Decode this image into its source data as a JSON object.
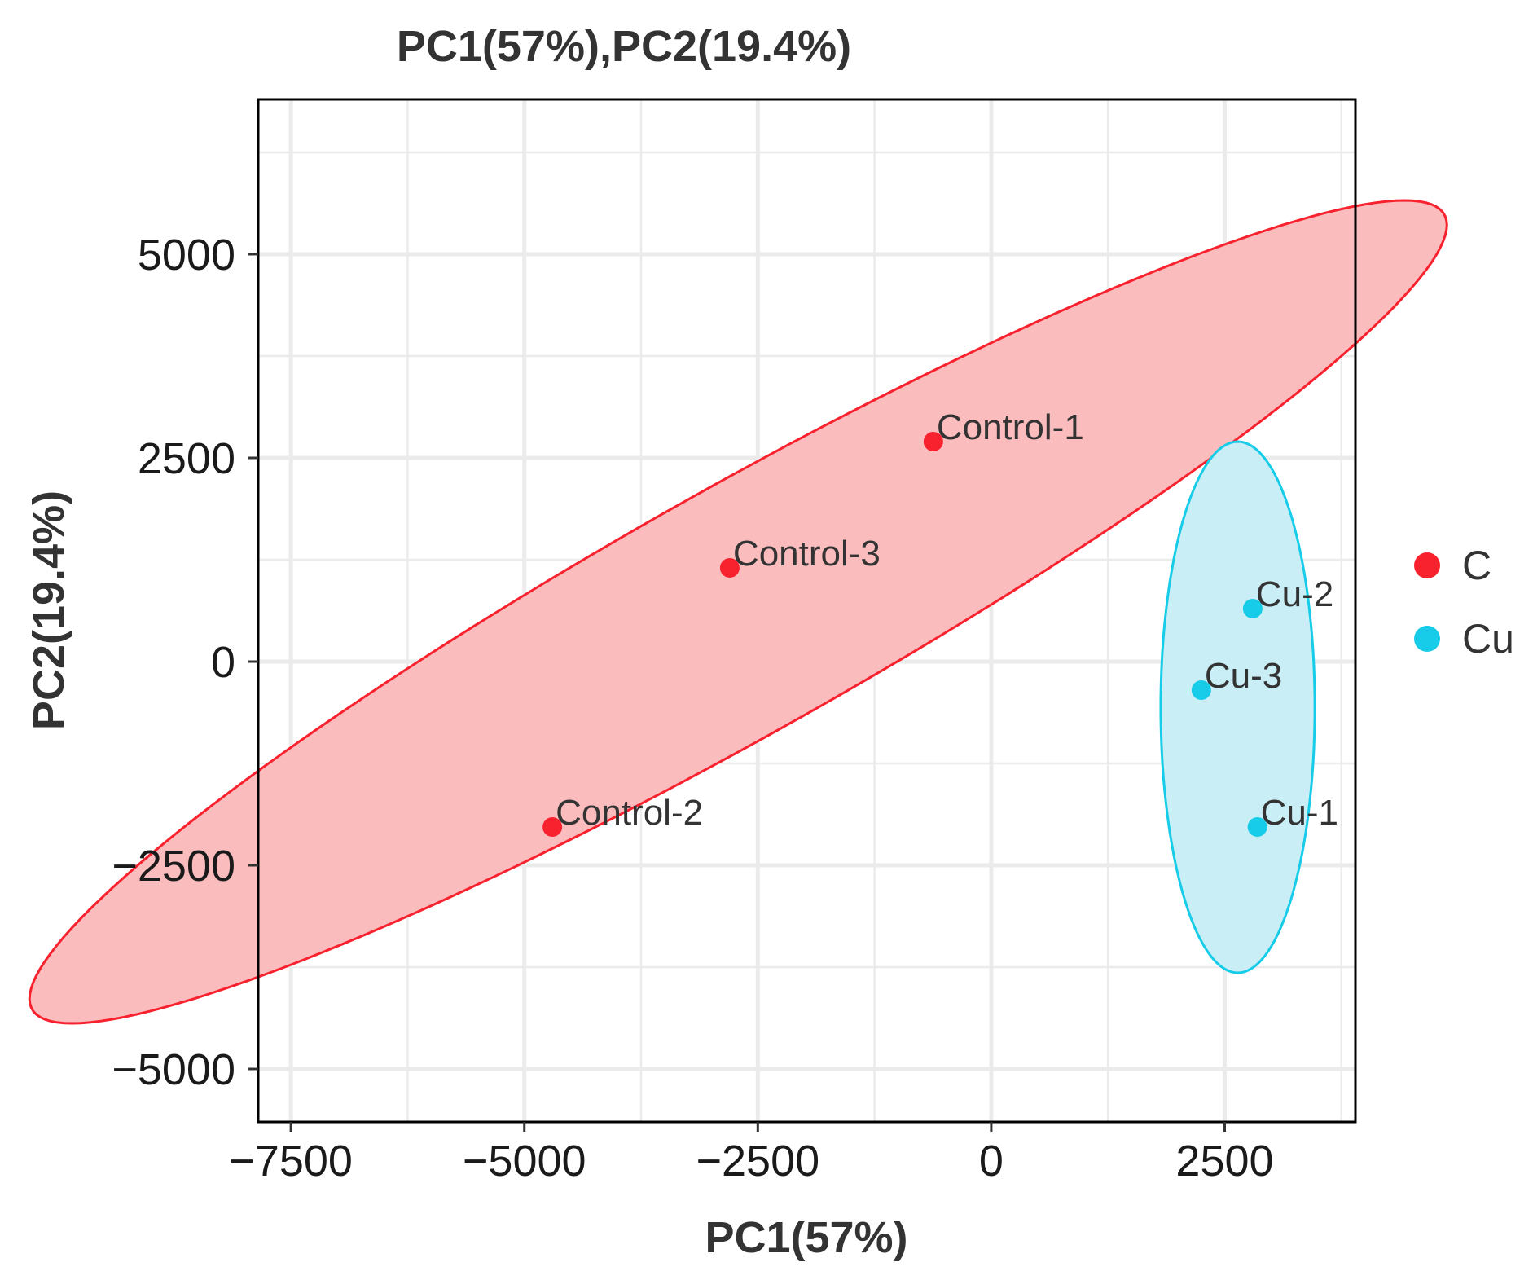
{
  "chart_data": {
    "type": "scatter",
    "title": "PC1(57%),PC2(19.4%)",
    "xlabel": "PC1(57%)",
    "ylabel": "PC2(19.4%)",
    "xlim": [
      -7850,
      3900
    ],
    "ylim": [
      -5650,
      6900
    ],
    "xticks": [
      -7500,
      -5000,
      -2500,
      0,
      2500
    ],
    "xtick_labels": [
      "−7500",
      "−5000",
      "−2500",
      "0",
      "2500"
    ],
    "yticks": [
      -5000,
      -2500,
      0,
      2500,
      5000
    ],
    "ytick_labels": [
      "−5000",
      "−2500",
      "0",
      "2500",
      "5000"
    ],
    "grid": true,
    "legend_position": "right",
    "series": [
      {
        "name": "C",
        "color": "#f8222f",
        "ellipse_fill": "#fbbcbe",
        "points": [
          {
            "label": "Control-1",
            "x": -620,
            "y": 2700
          },
          {
            "label": "Control-3",
            "x": -2800,
            "y": 1150
          },
          {
            "label": "Control-2",
            "x": -4700,
            "y": -2030
          }
        ],
        "ellipse": {
          "cx": -2710,
          "cy": 610,
          "rx": 9000,
          "ry": 1450,
          "angle_deg": 33
        }
      },
      {
        "name": "Cu",
        "color": "#17cce8",
        "ellipse_fill": "#c9eef6",
        "points": [
          {
            "label": "Cu-2",
            "x": 2800,
            "y": 650
          },
          {
            "label": "Cu-3",
            "x": 2250,
            "y": -350
          },
          {
            "label": "Cu-1",
            "x": 2850,
            "y": -2030
          }
        ],
        "ellipse": {
          "cx": 2640,
          "cy": -560,
          "rx": 825,
          "ry": 3260,
          "angle_deg": 0
        }
      }
    ]
  }
}
